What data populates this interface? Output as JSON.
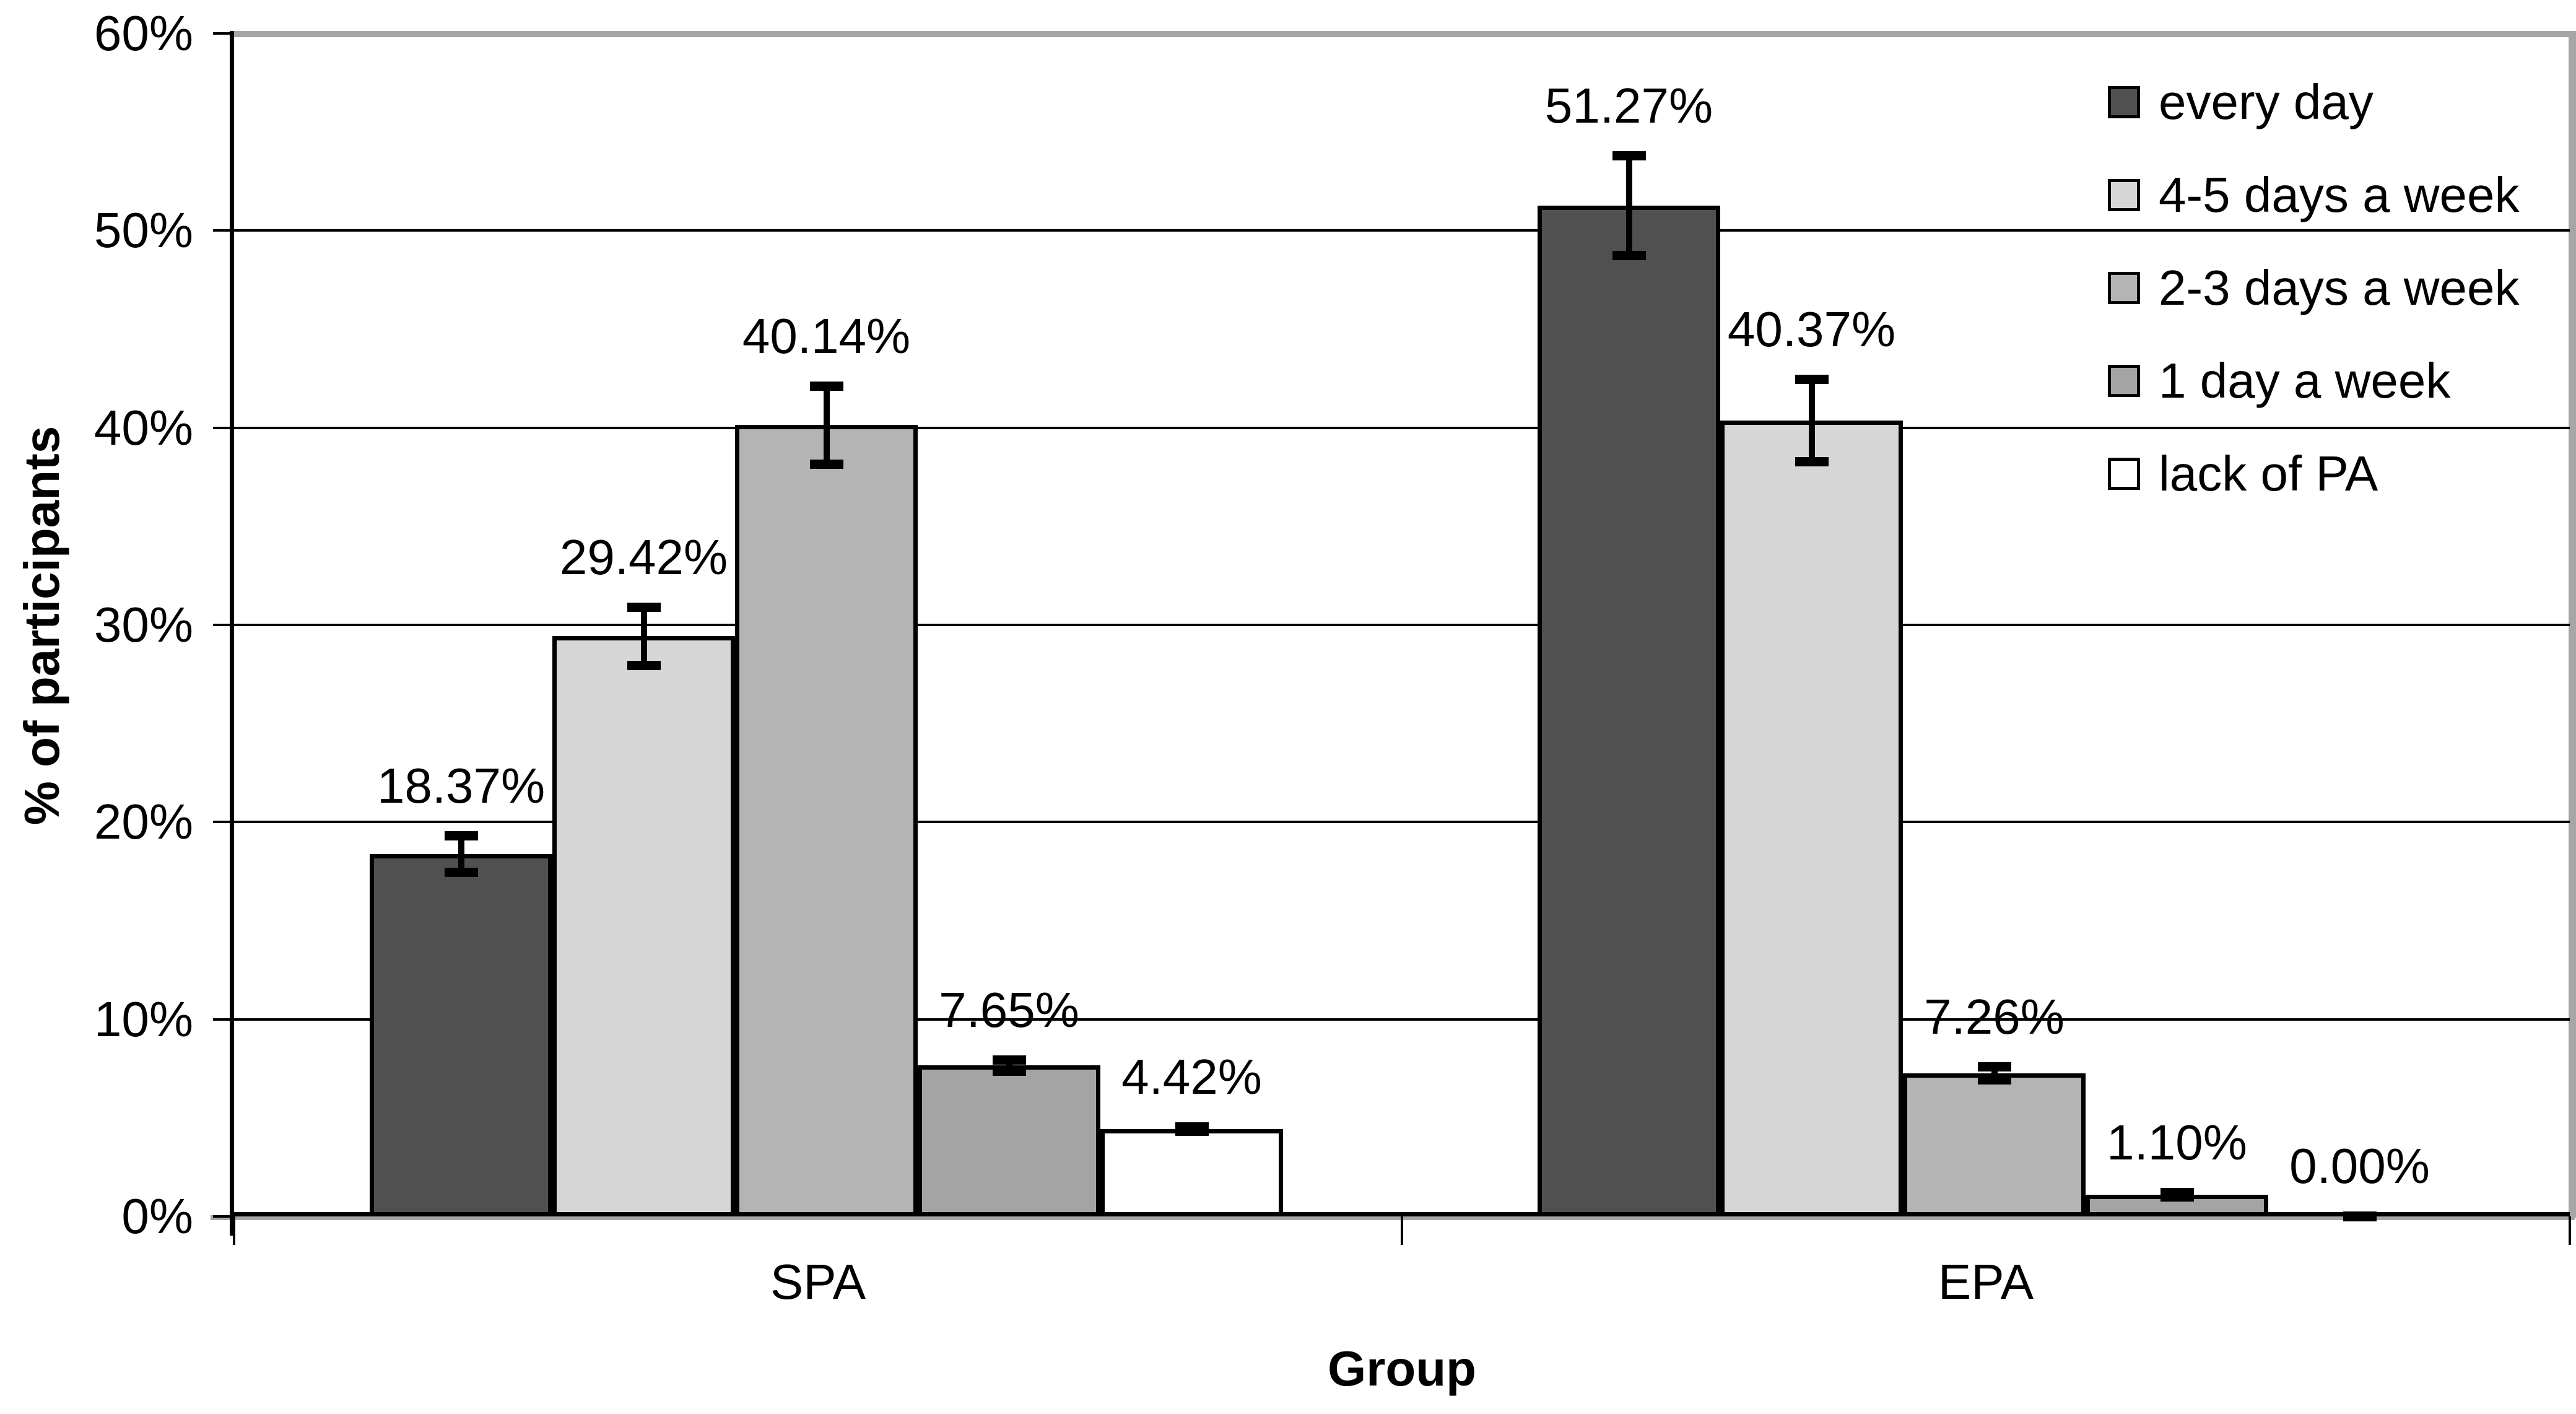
{
  "chart_data": {
    "type": "bar",
    "title": "",
    "xlabel": "Group",
    "ylabel": "% of participants",
    "ylim": [
      0,
      60
    ],
    "ytick_step": 10,
    "ytick_labels": [
      "0%",
      "10%",
      "20%",
      "30%",
      "40%",
      "50%",
      "60%"
    ],
    "grid": true,
    "legend_position": "top-right",
    "error_bars": true,
    "categories": [
      "SPA",
      "EPA"
    ],
    "series": [
      {
        "name": "every day",
        "color": "#505050",
        "values": [
          18.37,
          51.27
        ],
        "errors": [
          0.95,
          2.55
        ],
        "labels": [
          "18.37%",
          "51.27%"
        ]
      },
      {
        "name": "4-5 days a week",
        "color": "#d6d6d6",
        "values": [
          29.42,
          40.37
        ],
        "errors": [
          1.5,
          2.1
        ],
        "labels": [
          "29.42%",
          "40.37%"
        ]
      },
      {
        "name": "2-3 days a week",
        "color": "#b4b4b4",
        "values": [
          40.14,
          7.26
        ],
        "errors": [
          2.0,
          0.35
        ],
        "labels": [
          "40.14%",
          "7.26%"
        ]
      },
      {
        "name": "1 day a week",
        "color": "#a4a4a4",
        "values": [
          7.65,
          1.1
        ],
        "errors": [
          0.3,
          0.12
        ],
        "labels": [
          "7.65%",
          "1.10%"
        ]
      },
      {
        "name": "lack of PA",
        "color": "#ffffff",
        "values": [
          4.42,
          0.0
        ],
        "errors": [
          0.12,
          0.04
        ],
        "labels": [
          "4.42%",
          "0.00%"
        ]
      }
    ]
  }
}
